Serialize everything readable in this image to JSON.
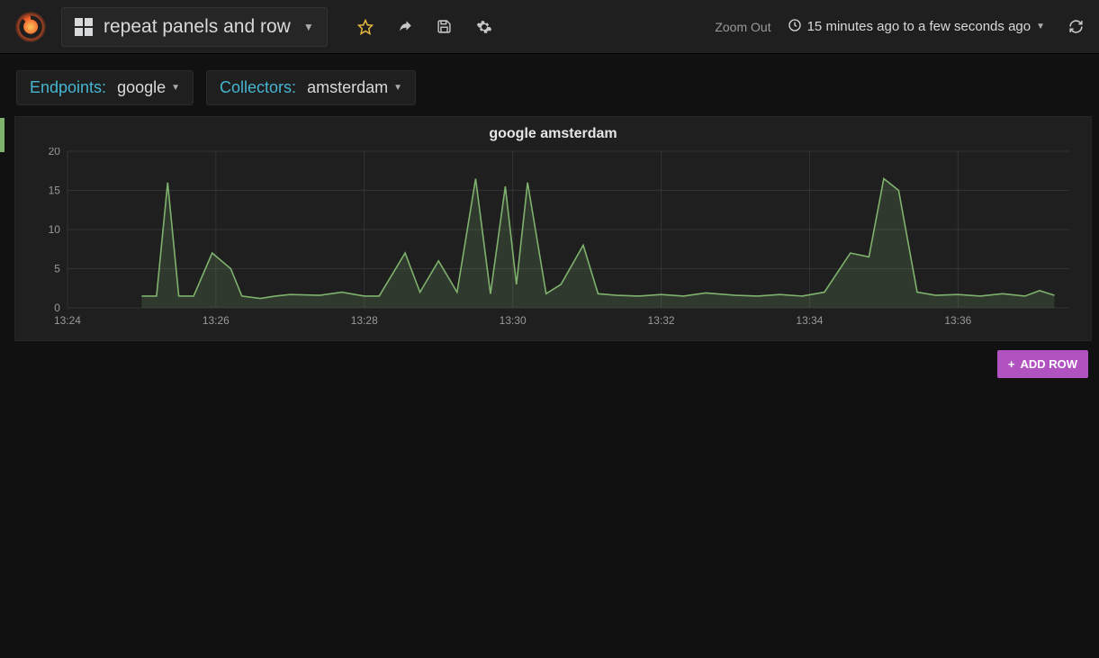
{
  "header": {
    "dashboard_title": "repeat panels and row",
    "zoom_out_label": "Zoom Out",
    "time_range_label": "15 minutes ago to a few seconds ago"
  },
  "variables": [
    {
      "label": "Endpoints:",
      "value": "google"
    },
    {
      "label": "Collectors:",
      "value": "amsterdam"
    }
  ],
  "panel": {
    "title": "google amsterdam",
    "chart": {
      "type": "line-area",
      "line_color": "#7eb26d",
      "fill_color": "rgba(126,178,109,0.18)",
      "background_color": "#1f1f1f",
      "grid_color": "#333333",
      "axis_text_color": "#9a9a9a",
      "ylim": [
        0,
        20
      ],
      "yticks": [
        0,
        5,
        10,
        15,
        20
      ],
      "xticks": [
        "13:24",
        "13:26",
        "13:28",
        "13:30",
        "13:32",
        "13:34",
        "13:36"
      ],
      "x_start_min": 24,
      "x_end_min": 37.5,
      "series": [
        {
          "x": 25.0,
          "y": 1.5
        },
        {
          "x": 25.2,
          "y": 1.5
        },
        {
          "x": 25.35,
          "y": 16
        },
        {
          "x": 25.5,
          "y": 1.5
        },
        {
          "x": 25.7,
          "y": 1.5
        },
        {
          "x": 25.95,
          "y": 7
        },
        {
          "x": 26.2,
          "y": 5
        },
        {
          "x": 26.35,
          "y": 1.5
        },
        {
          "x": 26.6,
          "y": 1.2
        },
        {
          "x": 26.8,
          "y": 1.5
        },
        {
          "x": 27.0,
          "y": 1.7
        },
        {
          "x": 27.4,
          "y": 1.6
        },
        {
          "x": 27.7,
          "y": 2
        },
        {
          "x": 28.0,
          "y": 1.5
        },
        {
          "x": 28.2,
          "y": 1.5
        },
        {
          "x": 28.55,
          "y": 7
        },
        {
          "x": 28.75,
          "y": 2
        },
        {
          "x": 29.0,
          "y": 6
        },
        {
          "x": 29.25,
          "y": 2
        },
        {
          "x": 29.5,
          "y": 16.5
        },
        {
          "x": 29.7,
          "y": 1.8
        },
        {
          "x": 29.9,
          "y": 15.5
        },
        {
          "x": 30.05,
          "y": 3
        },
        {
          "x": 30.2,
          "y": 16
        },
        {
          "x": 30.45,
          "y": 1.8
        },
        {
          "x": 30.65,
          "y": 3
        },
        {
          "x": 30.95,
          "y": 8
        },
        {
          "x": 31.15,
          "y": 1.8
        },
        {
          "x": 31.4,
          "y": 1.6
        },
        {
          "x": 31.7,
          "y": 1.5
        },
        {
          "x": 32.0,
          "y": 1.7
        },
        {
          "x": 32.3,
          "y": 1.5
        },
        {
          "x": 32.6,
          "y": 1.9
        },
        {
          "x": 33.0,
          "y": 1.6
        },
        {
          "x": 33.3,
          "y": 1.5
        },
        {
          "x": 33.6,
          "y": 1.7
        },
        {
          "x": 33.9,
          "y": 1.5
        },
        {
          "x": 34.2,
          "y": 2
        },
        {
          "x": 34.55,
          "y": 7
        },
        {
          "x": 34.8,
          "y": 6.5
        },
        {
          "x": 35.0,
          "y": 16.5
        },
        {
          "x": 35.2,
          "y": 15
        },
        {
          "x": 35.45,
          "y": 2
        },
        {
          "x": 35.7,
          "y": 1.6
        },
        {
          "x": 36.0,
          "y": 1.7
        },
        {
          "x": 36.3,
          "y": 1.5
        },
        {
          "x": 36.6,
          "y": 1.8
        },
        {
          "x": 36.9,
          "y": 1.5
        },
        {
          "x": 37.1,
          "y": 2.2
        },
        {
          "x": 37.3,
          "y": 1.6
        }
      ]
    }
  },
  "add_row_label": "ADD ROW"
}
